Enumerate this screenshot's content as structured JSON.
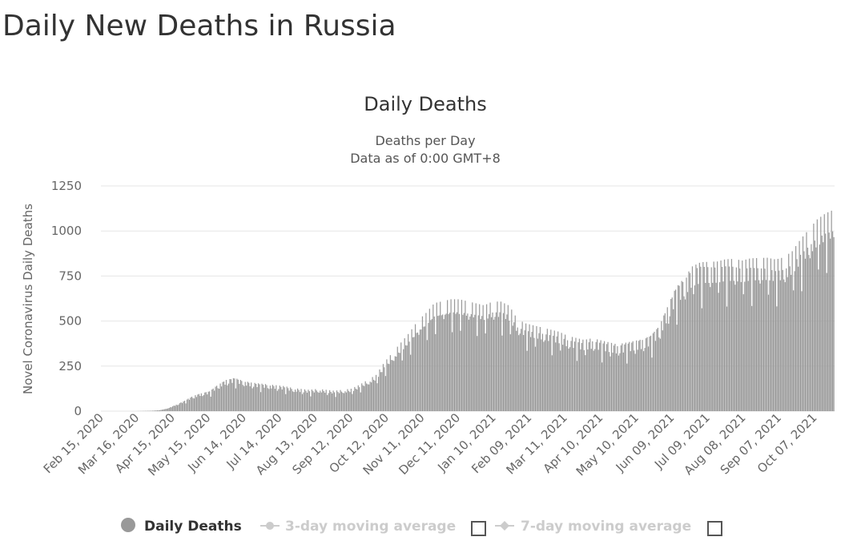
{
  "page": {
    "title": "Daily New Deaths in Russia"
  },
  "chart_data": {
    "type": "bar",
    "title": "Daily Deaths",
    "subtitle": "Deaths per Day",
    "subtitle2": "Data as of 0:00 GMT+8",
    "ylabel": "Novel Coronavirus Daily Deaths",
    "xlabel": "",
    "ylim": [
      0,
      1250
    ],
    "yticks": [
      0,
      250,
      500,
      750,
      1000,
      1250
    ],
    "grid": true,
    "bar_color": "#999999",
    "start_date": "2020-02-15",
    "x_tick_labels": [
      "Feb 15, 2020",
      "Mar 16, 2020",
      "Apr 15, 2020",
      "May 15, 2020",
      "Jun 14, 2020",
      "Jul 14, 2020",
      "Aug 13, 2020",
      "Sep 12, 2020",
      "Oct 12, 2020",
      "Nov 11, 2020",
      "Dec 11, 2020",
      "Jan 10, 2021",
      "Feb 09, 2021",
      "Mar 11, 2021",
      "Apr 10, 2021",
      "May 10, 2021",
      "Jun 09, 2021",
      "Jul 09, 2021",
      "Aug 08, 2021",
      "Sep 07, 2021",
      "Oct 07, 2021"
    ],
    "series": [
      {
        "name": "Daily Deaths",
        "dates": [
          "2020-02-15",
          "2020-02-22",
          "2020-02-29",
          "2020-03-07",
          "2020-03-14",
          "2020-03-21",
          "2020-03-28",
          "2020-04-04",
          "2020-04-11",
          "2020-04-18",
          "2020-04-25",
          "2020-05-02",
          "2020-05-09",
          "2020-05-16",
          "2020-05-23",
          "2020-05-30",
          "2020-06-06",
          "2020-06-13",
          "2020-06-20",
          "2020-06-27",
          "2020-07-04",
          "2020-07-11",
          "2020-07-18",
          "2020-07-25",
          "2020-08-01",
          "2020-08-08",
          "2020-08-15",
          "2020-08-22",
          "2020-08-29",
          "2020-09-05",
          "2020-09-12",
          "2020-09-19",
          "2020-09-26",
          "2020-10-03",
          "2020-10-10",
          "2020-10-17",
          "2020-10-24",
          "2020-10-31",
          "2020-11-07",
          "2020-11-14",
          "2020-11-21",
          "2020-11-28",
          "2020-12-05",
          "2020-12-12",
          "2020-12-19",
          "2020-12-26",
          "2021-01-02",
          "2021-01-09",
          "2021-01-16",
          "2021-01-23",
          "2021-01-30",
          "2021-02-06",
          "2021-02-13",
          "2021-02-20",
          "2021-02-27",
          "2021-03-06",
          "2021-03-13",
          "2021-03-20",
          "2021-03-27",
          "2021-04-03",
          "2021-04-10",
          "2021-04-17",
          "2021-04-24",
          "2021-05-01",
          "2021-05-08",
          "2021-05-15",
          "2021-05-22",
          "2021-05-29",
          "2021-06-05",
          "2021-06-12",
          "2021-06-19",
          "2021-06-26",
          "2021-07-03",
          "2021-07-10",
          "2021-07-17",
          "2021-07-24",
          "2021-07-31",
          "2021-08-07",
          "2021-08-14",
          "2021-08-21",
          "2021-08-28",
          "2021-09-04",
          "2021-09-11",
          "2021-09-18",
          "2021-09-25",
          "2021-10-02",
          "2021-10-09",
          "2021-10-16",
          "2021-10-23"
        ],
        "values": [
          0,
          0,
          0,
          0,
          0,
          1,
          2,
          5,
          15,
          35,
          55,
          80,
          95,
          105,
          140,
          165,
          175,
          160,
          150,
          145,
          140,
          135,
          130,
          120,
          115,
          110,
          115,
          110,
          105,
          110,
          115,
          135,
          160,
          185,
          250,
          300,
          350,
          400,
          460,
          500,
          550,
          560,
          570,
          570,
          560,
          550,
          540,
          560,
          560,
          540,
          470,
          450,
          440,
          430,
          420,
          410,
          390,
          380,
          370,
          380,
          370,
          360,
          350,
          360,
          370,
          380,
          400,
          450,
          550,
          650,
          700,
          760,
          780,
          780,
          780,
          790,
          790,
          780,
          790,
          790,
          790,
          780,
          790,
          820,
          880,
          930,
          980,
          1010,
          1028
        ]
      },
      {
        "name": "3-day moving average",
        "enabled": false
      },
      {
        "name": "7-day moving average",
        "enabled": false
      }
    ],
    "legend_position": "bottom-center"
  }
}
